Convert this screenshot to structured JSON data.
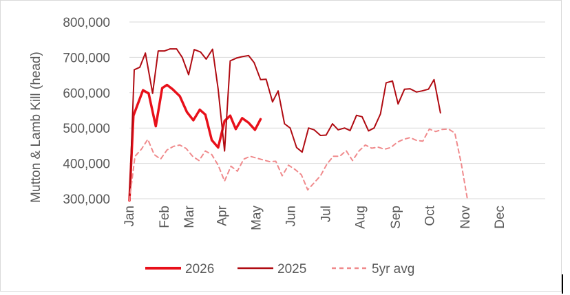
{
  "chart_data": {
    "type": "line",
    "ylabel": "Mutton & Lamb Kill  (head)",
    "ylim": [
      300000,
      800000
    ],
    "yticks": [
      300000,
      400000,
      500000,
      600000,
      700000,
      800000
    ],
    "ytick_labels": [
      "300,000",
      "400,000",
      "500,000",
      "600,000",
      "700,000",
      "800,000"
    ],
    "x_week_range": [
      1,
      53
    ],
    "months": [
      "Jan",
      "Feb",
      "Mar",
      "Apr",
      "May",
      "Jun",
      "Jul",
      "Aug",
      "Sep",
      "Oct",
      "Nov",
      "Dec"
    ],
    "month_weeks": [
      1,
      5.4,
      8.5,
      12.6,
      16.9,
      21.2,
      25.6,
      29.9,
      34.3,
      38.6,
      43,
      47.3
    ],
    "grid": "horizontal",
    "legend_position": "bottom",
    "series": [
      {
        "name": "2026",
        "color": "#e8101a",
        "dash": "solid",
        "width": 3.5,
        "x": [
          1,
          1.5,
          2,
          2.7,
          3.4,
          4.3,
          5.1,
          5.7,
          6.4,
          7.3,
          8.2,
          9,
          9.8,
          10.5,
          11.3,
          12.1,
          12.9,
          13.6,
          14.3,
          15.1,
          15.9,
          16.7,
          17.4,
          18.1,
          18.9,
          19.6
        ],
        "values": [
          295000,
          535000,
          565000,
          607000,
          598000,
          505000,
          613000,
          622000,
          610000,
          590000,
          545000,
          522000,
          552000,
          538000,
          466000,
          445000,
          520000,
          535000,
          497000,
          528000,
          515000,
          495000,
          525000,
          null,
          null,
          null
        ]
      },
      {
        "name": "2025",
        "color": "#b00b12",
        "dash": "solid",
        "width": 2,
        "x": [
          1,
          1.6,
          2.3,
          3,
          3.9,
          4.6,
          5.4,
          6.1,
          6.9,
          7.6,
          8.4,
          9.1,
          9.9,
          10.6,
          11.4,
          12.1,
          12.9,
          13.6,
          14.4,
          15.1,
          15.9,
          16.6,
          17.4,
          18.1,
          18.9,
          19.6,
          20.4,
          21.1,
          21.9,
          22.6,
          23.4,
          24.1,
          24.9,
          25.6,
          26.4,
          27.1,
          27.9,
          28.6,
          29.4,
          30.1,
          30.9,
          31.6,
          32.4,
          33.1,
          33.9,
          34.6,
          35.4,
          36.1,
          36.9,
          37.6,
          38.4,
          39.1,
          39.9,
          40.6,
          41.4,
          42.1,
          42.9,
          43.6,
          44.4,
          45.1,
          45.9,
          46.6,
          47.4,
          48.1,
          48.9,
          49.6,
          50.4,
          51.1,
          51.9,
          52.6
        ],
        "values": [
          295000,
          665000,
          672000,
          712000,
          598000,
          718000,
          718000,
          724000,
          724000,
          700000,
          651000,
          722000,
          715000,
          695000,
          723000,
          610000,
          435000,
          690000,
          698000,
          702000,
          705000,
          685000,
          637000,
          638000,
          574000,
          605000,
          512000,
          500000,
          445000,
          432000,
          500000,
          495000,
          479000,
          480000,
          512000,
          495000,
          500000,
          493000,
          536000,
          532000,
          492000,
          500000,
          540000,
          628000,
          633000,
          568000,
          610000,
          611000,
          602000,
          605000,
          610000,
          637000,
          543000,
          null,
          null,
          null,
          null,
          null,
          null,
          null,
          null,
          null,
          null,
          null,
          null,
          null,
          null,
          null,
          null,
          null
        ]
      },
      {
        "name": "5yr avg",
        "color": "#f08a8c",
        "dash": "6,5",
        "width": 2,
        "x": [
          1,
          1.7,
          2.5,
          3.3,
          4.1,
          4.9,
          5.7,
          6.5,
          7.3,
          8.1,
          8.9,
          9.7,
          10.5,
          11.3,
          12.1,
          12.9,
          13.7,
          14.5,
          15.3,
          16.1,
          16.9,
          17.7,
          18.5,
          19.3,
          20.1,
          20.9,
          21.7,
          22.5,
          23.3,
          24.1,
          24.9,
          25.7,
          26.5,
          27.3,
          28.1,
          28.9,
          29.7,
          30.5,
          31.3,
          32.1,
          32.9,
          33.7,
          34.5,
          35.3,
          36.1,
          36.9,
          37.7,
          38.5,
          39.3,
          40.1,
          40.9,
          41.7,
          42.5,
          43.3,
          44.1,
          44.9,
          45.7,
          46.5,
          47.3,
          48.1,
          48.9,
          49.7,
          50.5,
          51.3,
          52.1,
          52.6
        ],
        "values": [
          295000,
          420000,
          440000,
          468000,
          425000,
          412000,
          438000,
          448000,
          452000,
          442000,
          420000,
          408000,
          435000,
          425000,
          395000,
          350000,
          392000,
          378000,
          412000,
          420000,
          415000,
          410000,
          405000,
          406000,
          365000,
          395000,
          383000,
          368000,
          325000,
          345000,
          365000,
          398000,
          420000,
          420000,
          436000,
          408000,
          435000,
          452000,
          443000,
          446000,
          440000,
          445000,
          460000,
          468000,
          473000,
          465000,
          463000,
          497000,
          490000,
          496000,
          497000,
          486000,
          400000,
          295000,
          null,
          null,
          null,
          null,
          null,
          null,
          null,
          null,
          null,
          null,
          null,
          null
        ]
      }
    ]
  }
}
